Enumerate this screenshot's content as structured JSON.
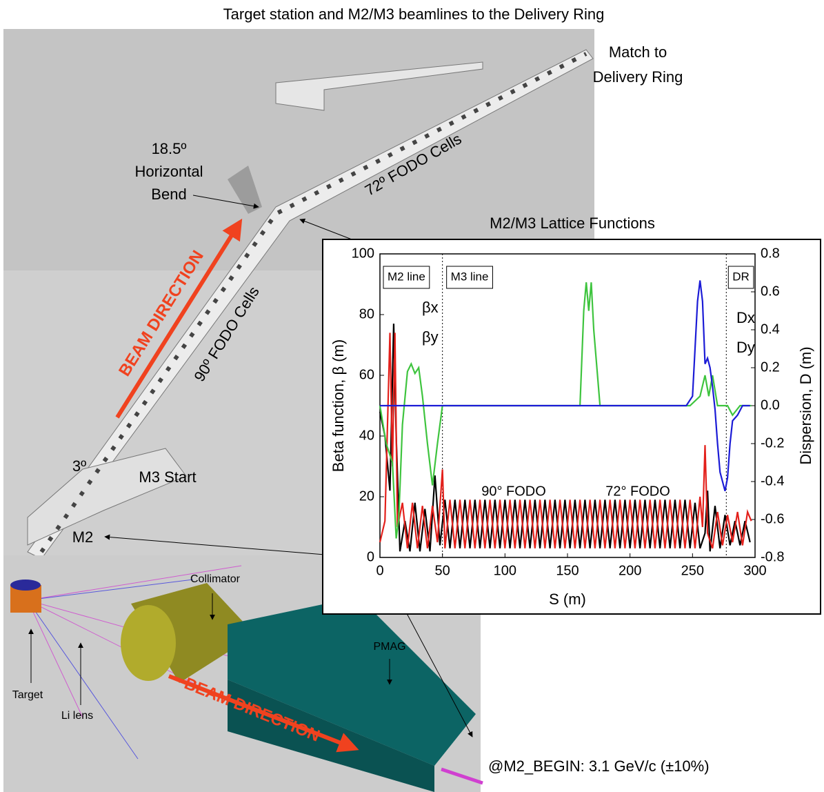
{
  "title": "Target station and M2/M3 beamlines to the Delivery Ring",
  "labels": {
    "match": [
      "Match to",
      "Delivery Ring"
    ],
    "bend": [
      "18.5º",
      "Horizontal",
      "Bend"
    ],
    "fodo72": "72º FODO Cells",
    "fodo90": "90º FODO Cells",
    "beam_upper": "BEAM DIRECTION",
    "beam_lower": "BEAM DIRECTION",
    "three_deg": "3º",
    "m3_start": "M3 Start",
    "m2": "M2",
    "collimator": "Collimator",
    "pmag": "PMAG",
    "target": "Target",
    "li_lens": "Li lens",
    "m2_begin": "@M2_BEGIN: 3.1 GeV/c (±10%)"
  },
  "chart_data": {
    "type": "line",
    "title": "M2/M3 Lattice Functions",
    "xlabel": "S (m)",
    "ylabel": "Beta function, β (m)",
    "y2label": "Dispersion, D (m)",
    "xlim": [
      0,
      300
    ],
    "xticks": [
      0,
      50,
      100,
      150,
      200,
      250,
      300
    ],
    "ylim": [
      0,
      100
    ],
    "yticks": [
      0,
      20,
      40,
      60,
      80,
      100
    ],
    "y2lim": [
      -0.8,
      0.8
    ],
    "y2ticks": [
      -0.8,
      -0.6,
      -0.4,
      -0.2,
      {
        "value": 0,
        "label": "0.0"
      },
      0.2,
      0.4,
      0.6,
      0.8
    ],
    "dividers": [
      50,
      277
    ],
    "regions": [
      "M2 line",
      "M3 line",
      "DR"
    ],
    "annotations": [
      "90° FODO",
      "72° FODO"
    ],
    "series": [
      {
        "name": "βx",
        "color": "#000000",
        "x": [
          0,
          4,
          8,
          11,
          13,
          16,
          20,
          24,
          28,
          32,
          36,
          40,
          44,
          48,
          52,
          56,
          60,
          64,
          68,
          72,
          76,
          80,
          84,
          88,
          92,
          96,
          100,
          104,
          108,
          112,
          116,
          120,
          124,
          128,
          132,
          136,
          140,
          144,
          148,
          152,
          156,
          160,
          164,
          168,
          172,
          176,
          180,
          184,
          188,
          192,
          196,
          200,
          204,
          208,
          212,
          216,
          220,
          224,
          228,
          232,
          236,
          240,
          244,
          248,
          252,
          256,
          260,
          262,
          264,
          268,
          272,
          276,
          280,
          284,
          288,
          292,
          296
        ],
        "values": [
          48,
          40,
          22,
          77,
          40,
          2,
          12,
          2,
          18,
          2,
          16,
          2,
          27,
          4,
          19,
          3,
          19,
          3,
          19,
          3,
          19,
          3,
          19,
          3,
          19,
          3,
          19,
          3,
          19,
          3,
          19,
          3,
          19,
          3,
          19,
          3,
          19,
          3,
          19,
          3,
          19,
          3,
          19,
          3,
          19,
          3,
          19,
          3,
          19,
          3,
          19,
          3,
          19,
          3,
          19,
          3,
          19,
          3,
          19,
          3,
          19,
          3,
          19,
          3,
          18,
          3,
          8,
          22,
          2,
          17,
          3,
          14,
          4,
          12,
          4,
          12,
          5
        ]
      },
      {
        "name": "βy",
        "color": "#e3201b",
        "x": [
          0,
          4,
          8,
          10,
          12,
          14,
          18,
          22,
          26,
          30,
          34,
          38,
          42,
          46,
          50,
          52,
          56,
          60,
          64,
          68,
          72,
          76,
          80,
          84,
          88,
          92,
          96,
          100,
          104,
          108,
          112,
          116,
          120,
          124,
          128,
          132,
          136,
          140,
          144,
          148,
          152,
          156,
          160,
          164,
          168,
          172,
          176,
          180,
          184,
          188,
          192,
          196,
          200,
          204,
          208,
          212,
          216,
          220,
          224,
          228,
          232,
          236,
          240,
          244,
          248,
          252,
          256,
          258,
          260,
          262,
          266,
          270,
          274,
          278,
          282,
          286,
          290,
          294,
          297
        ],
        "values": [
          5,
          12,
          74,
          30,
          74,
          10,
          18,
          3,
          18,
          3,
          17,
          3,
          17,
          5,
          29,
          3,
          19,
          3,
          19,
          3,
          19,
          3,
          19,
          3,
          19,
          3,
          19,
          3,
          19,
          3,
          19,
          3,
          19,
          3,
          19,
          3,
          19,
          3,
          19,
          3,
          19,
          3,
          19,
          3,
          19,
          3,
          19,
          3,
          19,
          3,
          19,
          3,
          19,
          3,
          19,
          3,
          19,
          3,
          19,
          3,
          19,
          3,
          19,
          3,
          19,
          3,
          20,
          10,
          37,
          8,
          3,
          15,
          4,
          14,
          5,
          15,
          4,
          15,
          12
        ]
      },
      {
        "name": "Dx",
        "color": "#3ec43e",
        "axis": "y2",
        "x": [
          0,
          5,
          10,
          13,
          15,
          18,
          22,
          25,
          28,
          31,
          34,
          38,
          42,
          46,
          50,
          55,
          160,
          163,
          165,
          167,
          169,
          171,
          176,
          180,
          248,
          256,
          260,
          263,
          266,
          268,
          270,
          274,
          278,
          282,
          288,
          297
        ],
        "values": [
          0,
          -0.2,
          -0.3,
          -0.7,
          -0.6,
          -0.1,
          0.18,
          0.22,
          0.17,
          0.2,
          0.05,
          -0.2,
          -0.42,
          -0.2,
          0,
          0,
          0,
          0.5,
          0.65,
          0.5,
          0.65,
          0.4,
          0,
          0,
          0,
          0.05,
          0.16,
          0.05,
          0.16,
          0.08,
          0,
          0,
          0,
          -0.05,
          0,
          0
        ]
      },
      {
        "name": "Dy",
        "color": "#1b1bd6",
        "axis": "y2",
        "x": [
          0,
          245,
          250,
          252,
          254,
          256,
          258,
          260,
          262,
          264,
          266,
          268,
          270,
          272,
          274,
          276,
          278,
          280,
          282,
          286,
          290,
          296
        ],
        "values": [
          0,
          0,
          0.05,
          0.3,
          0.55,
          0.66,
          0.55,
          0.22,
          0.25,
          0.2,
          0.1,
          -0.02,
          -0.2,
          -0.35,
          -0.4,
          -0.45,
          -0.38,
          -0.2,
          -0.08,
          -0.05,
          0,
          0
        ]
      }
    ]
  }
}
